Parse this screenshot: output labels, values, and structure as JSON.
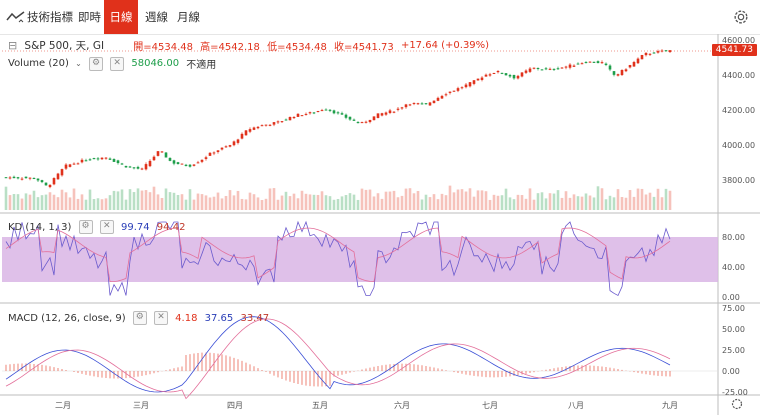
{
  "toolbar": {
    "indicators_label": "技術指標",
    "tabs": [
      "即時",
      "日線",
      "週線",
      "月線"
    ],
    "active_tab": "日線"
  },
  "main": {
    "symbol": "S&P 500, 天, GI",
    "open_label": "開=4534.48",
    "high_label": "高=4542.18",
    "low_label": "低=4534.48",
    "close_label": "收=4541.73",
    "change_label": "+17.64 (+0.39%)",
    "last_price_tag": "4541.73",
    "y_ticks": [
      "4600.00",
      "4400.00",
      "4200.00",
      "4000.00",
      "3800.00"
    ]
  },
  "volume": {
    "label": "Volume (20)",
    "value": "58046.00",
    "na_text": "不適用"
  },
  "kd": {
    "label": "KD (14, 1, 3)",
    "k_value": "99.74",
    "d_value": "94.42",
    "y_ticks": [
      "80.00",
      "40.00",
      "0.00"
    ]
  },
  "macd": {
    "label": "MACD (12, 26, close, 9)",
    "hist_value": "4.18",
    "macd_value": "37.65",
    "signal_value": "33.47",
    "y_ticks": [
      "75.00",
      "50.00",
      "25.00",
      "0.00",
      "-25.00"
    ]
  },
  "x_axis": [
    "二月",
    "三月",
    "四月",
    "五月",
    "六月",
    "七月",
    "八月",
    "九月"
  ],
  "colors": {
    "up": "#e0311b",
    "down": "#1e9e4a",
    "k_line": "#6a5acd",
    "d_line": "#e36f9a",
    "kd_band": "#d9b5e5"
  }
}
